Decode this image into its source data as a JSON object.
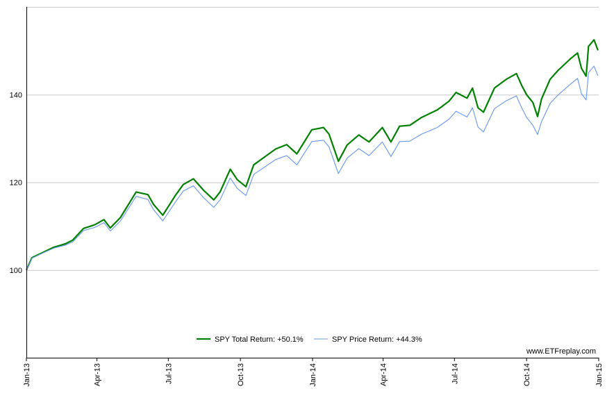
{
  "chart_data": {
    "type": "line",
    "title": "",
    "xlabel": "",
    "ylabel": "",
    "x_ticks": [
      "Jan-13",
      "Apr-13",
      "Jul-13",
      "Oct-13",
      "Jan-14",
      "Apr-14",
      "Jul-14",
      "Oct-14",
      "Jan-15"
    ],
    "y_ticks": [
      100,
      120,
      140
    ],
    "ylim": [
      80,
      160
    ],
    "xlim": [
      "2013-01-01",
      "2015-01-01"
    ],
    "grid": true,
    "legend_position": "bottom-center",
    "watermark": "www.ETFreplay.com",
    "series": [
      {
        "name": "SPY Total Return: +50.1%",
        "color": "#008000",
        "points": [
          [
            "2013-01-01",
            100
          ],
          [
            "2013-01-08",
            102.8
          ],
          [
            "2013-01-22",
            104
          ],
          [
            "2013-02-05",
            105.2
          ],
          [
            "2013-02-20",
            106
          ],
          [
            "2013-03-01",
            106.8
          ],
          [
            "2013-03-15",
            109.5
          ],
          [
            "2013-03-29",
            110.3
          ],
          [
            "2013-04-10",
            111.5
          ],
          [
            "2013-04-18",
            109.6
          ],
          [
            "2013-05-01",
            112
          ],
          [
            "2013-05-21",
            117.8
          ],
          [
            "2013-06-05",
            117.2
          ],
          [
            "2013-06-12",
            115
          ],
          [
            "2013-06-24",
            112.5
          ],
          [
            "2013-07-10",
            117
          ],
          [
            "2013-07-20",
            119.5
          ],
          [
            "2013-08-02",
            120.8
          ],
          [
            "2013-08-15",
            118.2
          ],
          [
            "2013-08-28",
            116
          ],
          [
            "2013-09-05",
            117.8
          ],
          [
            "2013-09-18",
            123
          ],
          [
            "2013-09-27",
            120.6
          ],
          [
            "2013-10-08",
            119
          ],
          [
            "2013-10-18",
            124
          ],
          [
            "2013-11-01",
            125.8
          ],
          [
            "2013-11-15",
            127.6
          ],
          [
            "2013-11-29",
            128.6
          ],
          [
            "2013-12-12",
            126.5
          ],
          [
            "2013-12-31",
            132
          ],
          [
            "2014-01-15",
            132.5
          ],
          [
            "2014-01-22",
            131
          ],
          [
            "2014-02-03",
            124.8
          ],
          [
            "2014-02-14",
            128.5
          ],
          [
            "2014-03-01",
            130.8
          ],
          [
            "2014-03-14",
            129.2
          ],
          [
            "2014-03-31",
            132.5
          ],
          [
            "2014-04-11",
            129.2
          ],
          [
            "2014-04-22",
            132.8
          ],
          [
            "2014-05-05",
            133
          ],
          [
            "2014-05-20",
            134.8
          ],
          [
            "2014-06-09",
            136.5
          ],
          [
            "2014-06-24",
            138.5
          ],
          [
            "2014-07-03",
            140.5
          ],
          [
            "2014-07-17",
            139.2
          ],
          [
            "2014-07-24",
            141.5
          ],
          [
            "2014-07-31",
            137
          ],
          [
            "2014-08-07",
            136
          ],
          [
            "2014-08-21",
            141.5
          ],
          [
            "2014-09-05",
            143.5
          ],
          [
            "2014-09-18",
            144.8
          ],
          [
            "2014-09-25",
            142
          ],
          [
            "2014-10-01",
            140
          ],
          [
            "2014-10-09",
            138.2
          ],
          [
            "2014-10-15",
            135
          ],
          [
            "2014-10-20",
            139
          ],
          [
            "2014-10-31",
            143.5
          ],
          [
            "2014-11-10",
            145.5
          ],
          [
            "2014-11-26",
            148.2
          ],
          [
            "2014-12-05",
            149.5
          ],
          [
            "2014-12-10",
            146
          ],
          [
            "2014-12-16",
            144.2
          ],
          [
            "2014-12-19",
            151
          ],
          [
            "2014-12-26",
            152.5
          ],
          [
            "2014-12-31",
            150.1
          ]
        ]
      },
      {
        "name": "SPY Price Return: +44.3%",
        "color": "#6495ED",
        "points": [
          [
            "2013-01-01",
            100
          ],
          [
            "2013-01-08",
            102.7
          ],
          [
            "2013-01-22",
            103.9
          ],
          [
            "2013-02-05",
            105
          ],
          [
            "2013-02-20",
            105.7
          ],
          [
            "2013-03-01",
            106.4
          ],
          [
            "2013-03-15",
            109
          ],
          [
            "2013-03-29",
            109.7
          ],
          [
            "2013-04-10",
            110.8
          ],
          [
            "2013-04-18",
            108.9
          ],
          [
            "2013-05-01",
            111.2
          ],
          [
            "2013-05-21",
            116.8
          ],
          [
            "2013-06-05",
            116.1
          ],
          [
            "2013-06-12",
            113.8
          ],
          [
            "2013-06-24",
            111.2
          ],
          [
            "2013-07-10",
            115.5
          ],
          [
            "2013-07-20",
            118
          ],
          [
            "2013-08-02",
            119.2
          ],
          [
            "2013-08-15",
            116.5
          ],
          [
            "2013-08-28",
            114.3
          ],
          [
            "2013-09-05",
            116
          ],
          [
            "2013-09-18",
            121
          ],
          [
            "2013-09-27",
            118.6
          ],
          [
            "2013-10-08",
            117
          ],
          [
            "2013-10-18",
            121.8
          ],
          [
            "2013-11-01",
            123.5
          ],
          [
            "2013-11-15",
            125.2
          ],
          [
            "2013-11-29",
            126.1
          ],
          [
            "2013-12-12",
            124
          ],
          [
            "2013-12-31",
            129.3
          ],
          [
            "2014-01-15",
            129.6
          ],
          [
            "2014-01-22",
            128.1
          ],
          [
            "2014-02-03",
            122
          ],
          [
            "2014-02-14",
            125.5
          ],
          [
            "2014-03-01",
            127.7
          ],
          [
            "2014-03-14",
            126.1
          ],
          [
            "2014-03-31",
            129.2
          ],
          [
            "2014-04-11",
            125.9
          ],
          [
            "2014-04-22",
            129.3
          ],
          [
            "2014-05-05",
            129.4
          ],
          [
            "2014-05-20",
            131
          ],
          [
            "2014-06-09",
            132.5
          ],
          [
            "2014-06-24",
            134.4
          ],
          [
            "2014-07-03",
            136.2
          ],
          [
            "2014-07-17",
            134.9
          ],
          [
            "2014-07-24",
            137
          ],
          [
            "2014-07-31",
            132.6
          ],
          [
            "2014-08-07",
            131.5
          ],
          [
            "2014-08-21",
            136.8
          ],
          [
            "2014-09-05",
            138.6
          ],
          [
            "2014-09-18",
            139.7
          ],
          [
            "2014-09-25",
            136.9
          ],
          [
            "2014-10-01",
            134.8
          ],
          [
            "2014-10-09",
            133
          ],
          [
            "2014-10-15",
            130.9
          ],
          [
            "2014-10-20",
            133.8
          ],
          [
            "2014-10-31",
            138
          ],
          [
            "2014-11-10",
            139.9
          ],
          [
            "2014-11-26",
            142.4
          ],
          [
            "2014-12-05",
            143.7
          ],
          [
            "2014-12-10",
            140.2
          ],
          [
            "2014-12-16",
            138.8
          ],
          [
            "2014-12-19",
            145
          ],
          [
            "2014-12-26",
            146.5
          ],
          [
            "2014-12-31",
            144.3
          ]
        ]
      }
    ]
  }
}
